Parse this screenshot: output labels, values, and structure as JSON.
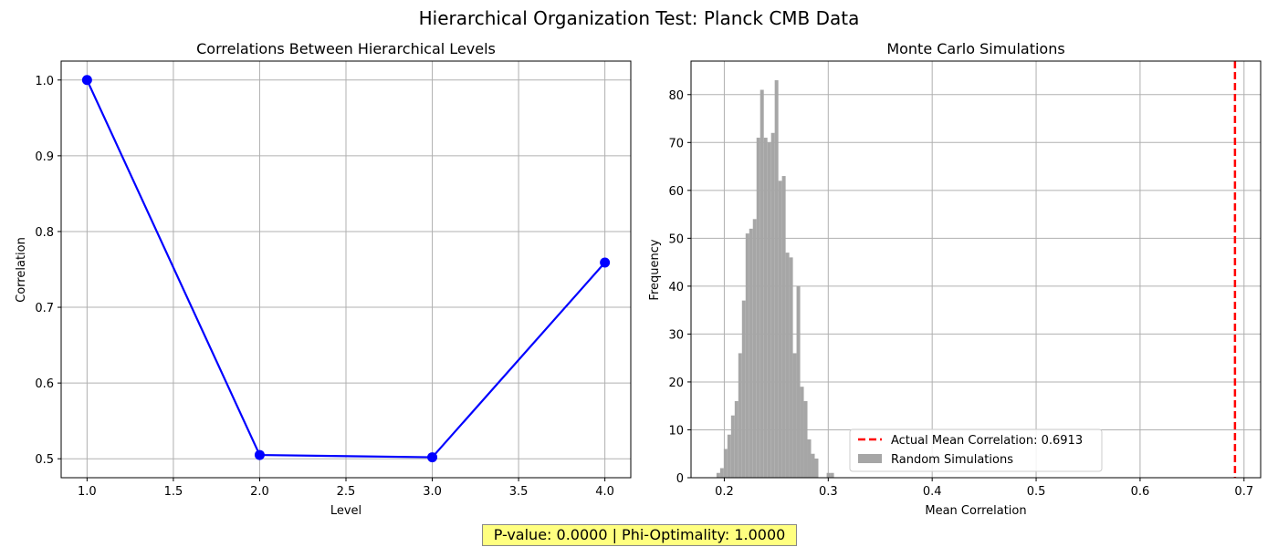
{
  "figure": {
    "title": "Hierarchical Organization Test: Planck CMB Data",
    "footer": "P-value: 0.0000 | Phi-Optimality: 1.0000",
    "footer_bg": "#ffff80"
  },
  "chart_data": [
    {
      "type": "line",
      "title": "Correlations Between Hierarchical Levels",
      "xlabel": "Level",
      "ylabel": "Correlation",
      "x": [
        1.0,
        2.0,
        3.0,
        4.0
      ],
      "y": [
        1.0,
        0.505,
        0.502,
        0.759
      ],
      "xlim": [
        0.85,
        4.15
      ],
      "ylim": [
        0.475,
        1.025
      ],
      "xticks": [
        "1.0",
        "1.5",
        "2.0",
        "2.5",
        "3.0",
        "3.5",
        "4.0"
      ],
      "yticks": [
        "0.5",
        "0.6",
        "0.7",
        "0.8",
        "0.9",
        "1.0"
      ],
      "grid": true,
      "marker": "circle",
      "color": "#0000ff"
    },
    {
      "type": "histogram",
      "title": "Monte Carlo Simulations",
      "xlabel": "Mean Correlation",
      "ylabel": "Frequency",
      "xlim": [
        0.168,
        0.716
      ],
      "ylim": [
        0,
        87
      ],
      "xticks": [
        "0.2",
        "0.3",
        "0.4",
        "0.5",
        "0.6",
        "0.7"
      ],
      "yticks": [
        "0",
        "10",
        "20",
        "30",
        "40",
        "50",
        "60",
        "70",
        "80"
      ],
      "grid": true,
      "bins": [
        {
          "x0": 0.1925,
          "x1": 0.196,
          "count": 1
        },
        {
          "x0": 0.196,
          "x1": 0.1995,
          "count": 2
        },
        {
          "x0": 0.1995,
          "x1": 0.203,
          "count": 6
        },
        {
          "x0": 0.203,
          "x1": 0.2065,
          "count": 9
        },
        {
          "x0": 0.2065,
          "x1": 0.21,
          "count": 13
        },
        {
          "x0": 0.21,
          "x1": 0.2135,
          "count": 16
        },
        {
          "x0": 0.2135,
          "x1": 0.217,
          "count": 26
        },
        {
          "x0": 0.217,
          "x1": 0.2205,
          "count": 37
        },
        {
          "x0": 0.2205,
          "x1": 0.224,
          "count": 51
        },
        {
          "x0": 0.224,
          "x1": 0.2275,
          "count": 52
        },
        {
          "x0": 0.2275,
          "x1": 0.231,
          "count": 54
        },
        {
          "x0": 0.231,
          "x1": 0.2345,
          "count": 71
        },
        {
          "x0": 0.2345,
          "x1": 0.238,
          "count": 81
        },
        {
          "x0": 0.238,
          "x1": 0.2415,
          "count": 71
        },
        {
          "x0": 0.2415,
          "x1": 0.245,
          "count": 70
        },
        {
          "x0": 0.245,
          "x1": 0.2485,
          "count": 72
        },
        {
          "x0": 0.2485,
          "x1": 0.252,
          "count": 83
        },
        {
          "x0": 0.252,
          "x1": 0.2555,
          "count": 62
        },
        {
          "x0": 0.2555,
          "x1": 0.259,
          "count": 63
        },
        {
          "x0": 0.259,
          "x1": 0.2625,
          "count": 47
        },
        {
          "x0": 0.2625,
          "x1": 0.266,
          "count": 46
        },
        {
          "x0": 0.266,
          "x1": 0.2695,
          "count": 26
        },
        {
          "x0": 0.2695,
          "x1": 0.273,
          "count": 40
        },
        {
          "x0": 0.273,
          "x1": 0.2765,
          "count": 19
        },
        {
          "x0": 0.2765,
          "x1": 0.28,
          "count": 16
        },
        {
          "x0": 0.28,
          "x1": 0.2835,
          "count": 8
        },
        {
          "x0": 0.2835,
          "x1": 0.287,
          "count": 5
        },
        {
          "x0": 0.287,
          "x1": 0.2905,
          "count": 4
        },
        {
          "x0": 0.2985,
          "x1": 0.302,
          "count": 1
        },
        {
          "x0": 0.302,
          "x1": 0.3055,
          "count": 1
        }
      ],
      "bar_color": "#a6a6a6",
      "vline": {
        "x": 0.6913,
        "color": "#ff0000",
        "style": "dashed"
      },
      "legend": {
        "placement": "lower-center",
        "entries": [
          {
            "label": "Actual Mean Correlation: 0.6913",
            "kind": "dashed-line",
            "color": "#ff0000"
          },
          {
            "label": "Random Simulations",
            "kind": "patch",
            "color": "#a6a6a6"
          }
        ]
      }
    }
  ]
}
